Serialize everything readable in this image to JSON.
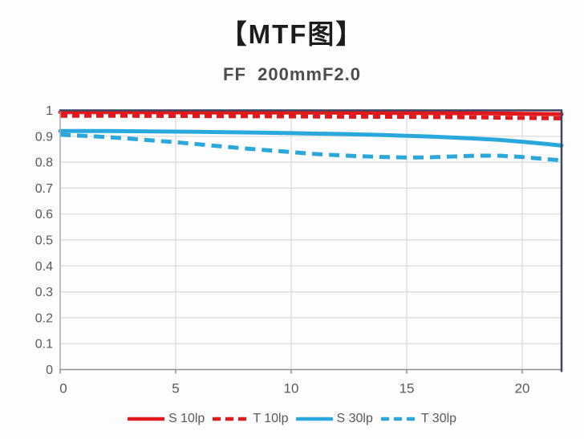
{
  "header": {
    "title": "【MTF图】",
    "subtitle": "FF  200mmF2.0"
  },
  "colors": {
    "red_series": "#e2191c",
    "blue_series": "#2aa7db",
    "plot_border": "#3d4560",
    "axis_line": "#8f8f8f",
    "gridline": "#d9d9d9",
    "tick_text": "#595959",
    "title_text": "#1c1c1c",
    "subtitle_text": "#4d4d4d",
    "legend_text": "#595959",
    "background": "#fdfdfd"
  },
  "chart_data": {
    "type": "line",
    "title": "【MTF图】",
    "subtitle": "FF 200mmF2.0",
    "xlabel": "",
    "ylabel": "",
    "xlim": [
      0,
      21.7
    ],
    "ylim": [
      0,
      1
    ],
    "x_ticks": [
      0,
      5,
      10,
      15,
      20
    ],
    "x_tick_labels": [
      "0",
      "5",
      "10",
      "15",
      "20"
    ],
    "y_ticks": [
      0,
      0.1,
      0.2,
      0.3,
      0.4,
      0.5,
      0.6,
      0.7,
      0.8,
      0.9,
      1
    ],
    "y_tick_labels": [
      "0",
      "0.1",
      "0.2",
      "0.3",
      "0.4",
      "0.5",
      "0.6",
      "0.7",
      "0.8",
      "0.9",
      "1"
    ],
    "grid": true,
    "legend_position": "bottom",
    "series": [
      {
        "name": "S 10lp",
        "color": "#e2191c",
        "style": "solid",
        "x": [
          0,
          3,
          6,
          9,
          12,
          15,
          18,
          20,
          21.7
        ],
        "y": [
          0.993,
          0.993,
          0.992,
          0.992,
          0.991,
          0.99,
          0.989,
          0.987,
          0.985
        ]
      },
      {
        "name": "T 10lp",
        "color": "#e2191c",
        "style": "dashed",
        "x": [
          0,
          3,
          6,
          9,
          12,
          15,
          18,
          20,
          21.7
        ],
        "y": [
          0.979,
          0.979,
          0.978,
          0.977,
          0.976,
          0.975,
          0.973,
          0.971,
          0.969
        ]
      },
      {
        "name": "S 30lp",
        "color": "#2aa7db",
        "style": "solid",
        "x": [
          0,
          2,
          4,
          6,
          8,
          10,
          12,
          14,
          15,
          16,
          17,
          18,
          19,
          20,
          21,
          21.7
        ],
        "y": [
          0.92,
          0.92,
          0.919,
          0.917,
          0.915,
          0.912,
          0.909,
          0.905,
          0.902,
          0.899,
          0.895,
          0.891,
          0.886,
          0.879,
          0.871,
          0.864
        ]
      },
      {
        "name": "T 30lp",
        "color": "#2aa7db",
        "style": "dashed",
        "x": [
          0,
          1,
          2,
          3,
          4,
          5,
          6,
          7,
          8,
          9,
          10,
          11,
          12,
          13,
          14,
          15,
          16,
          17,
          18,
          19,
          20,
          21,
          21.7
        ],
        "y": [
          0.906,
          0.902,
          0.897,
          0.891,
          0.884,
          0.877,
          0.869,
          0.861,
          0.853,
          0.846,
          0.839,
          0.832,
          0.827,
          0.823,
          0.82,
          0.818,
          0.819,
          0.822,
          0.825,
          0.825,
          0.82,
          0.812,
          0.807
        ]
      }
    ]
  }
}
